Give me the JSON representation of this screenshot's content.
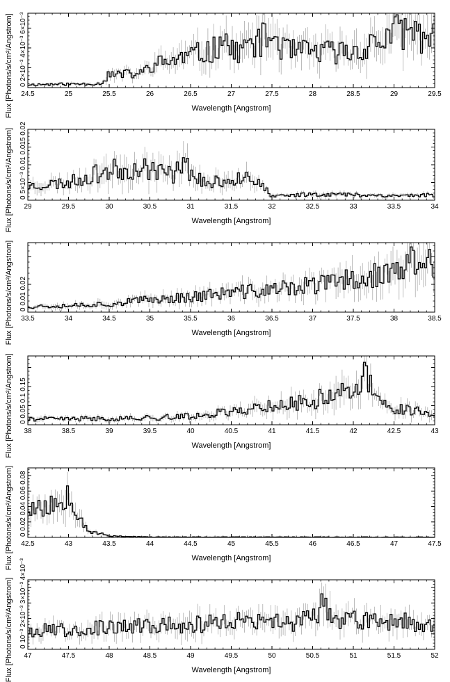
{
  "chart_data": [
    {
      "type": "line",
      "xlabel": "Wavelength [Angstrom]",
      "ylabel": "Flux [Photons/s/cm²/Angstrom]",
      "xlim": [
        24.5,
        29.5
      ],
      "ylim": [
        0,
        0.0075
      ],
      "xticks": [
        24.5,
        25,
        25.5,
        26,
        26.5,
        27,
        27.5,
        28,
        28.5,
        29,
        29.5
      ],
      "ytick_values": [
        0,
        0.002,
        0.004,
        0.006
      ],
      "yticks_text": "0  2×10⁻³ 4×10⁻³ 6×10⁻³",
      "seed": 11,
      "points": [
        [
          24.5,
          0.0003
        ],
        [
          25.4,
          0.0004
        ],
        [
          25.5,
          0.0013
        ],
        [
          25.9,
          0.0014
        ],
        [
          26.0,
          0.0022
        ],
        [
          26.8,
          0.0038
        ],
        [
          26.9,
          0.0056
        ],
        [
          27.0,
          0.0035
        ],
        [
          27.5,
          0.0052
        ],
        [
          27.7,
          0.0036
        ],
        [
          28.5,
          0.0036
        ],
        [
          28.8,
          0.0046
        ],
        [
          29.1,
          0.0058
        ],
        [
          29.5,
          0.005
        ]
      ]
    },
    {
      "type": "line",
      "xlabel": "Wavelength [Angstrom]",
      "ylabel": "Flux [Photons/s/cm²/Angstrom]",
      "xlim": [
        29.0,
        34.0
      ],
      "ylim": [
        0,
        0.02
      ],
      "xticks": [
        29,
        29.5,
        30,
        30.5,
        31,
        31.5,
        32,
        32.5,
        33,
        33.5,
        34
      ],
      "ytick_values": [
        0,
        0.005,
        0.01,
        0.015,
        0.02
      ],
      "yticks_text": "0  5×10⁻³ 0.01 0.015 0.02",
      "seed": 23,
      "points": [
        [
          29.0,
          0.004
        ],
        [
          29.5,
          0.005
        ],
        [
          30.0,
          0.0085
        ],
        [
          30.5,
          0.009
        ],
        [
          30.8,
          0.007
        ],
        [
          30.85,
          0.0125
        ],
        [
          31.0,
          0.008
        ],
        [
          31.2,
          0.0045
        ],
        [
          31.5,
          0.006
        ],
        [
          31.7,
          0.0075
        ],
        [
          31.9,
          0.0035
        ],
        [
          32.0,
          0.001
        ],
        [
          32.5,
          0.0018
        ],
        [
          33.5,
          0.0013
        ],
        [
          34.0,
          0.0015
        ]
      ]
    },
    {
      "type": "line",
      "xlabel": "Wavelength [Angstrom]",
      "ylabel": "Flux [Photons/s/cm²/Angstrom]",
      "xlim": [
        33.5,
        38.5
      ],
      "ylim": [
        0,
        0.025
      ],
      "xticks": [
        33.5,
        34,
        34.5,
        35,
        35.5,
        36,
        36.5,
        37,
        37.5,
        38,
        38.5
      ],
      "ytick_values": [
        0,
        0.01,
        0.02
      ],
      "yticks_text": "0 0.01 0.02",
      "seed": 37,
      "points": [
        [
          33.5,
          0.002
        ],
        [
          34.5,
          0.003
        ],
        [
          35.0,
          0.0045
        ],
        [
          35.5,
          0.0055
        ],
        [
          36.0,
          0.007
        ],
        [
          36.5,
          0.008
        ],
        [
          37.0,
          0.0095
        ],
        [
          37.5,
          0.012
        ],
        [
          38.0,
          0.014
        ],
        [
          38.3,
          0.019
        ],
        [
          38.5,
          0.016
        ]
      ]
    },
    {
      "type": "line",
      "xlabel": "Wavelength [Angstrom]",
      "ylabel": "Flux [Photons/s/cm²/Angstrom]",
      "xlim": [
        38.0,
        43.0
      ],
      "ylim": [
        0,
        0.18
      ],
      "xticks": [
        38,
        38.5,
        39,
        39.5,
        40,
        40.5,
        41,
        41.5,
        42,
        42.5,
        43
      ],
      "ytick_values": [
        0,
        0.05,
        0.1,
        0.15
      ],
      "yticks_text": "0 0.05 0.1 0.15",
      "seed": 41,
      "points": [
        [
          38.0,
          0.015
        ],
        [
          39.0,
          0.016
        ],
        [
          39.5,
          0.018
        ],
        [
          40.0,
          0.022
        ],
        [
          40.5,
          0.035
        ],
        [
          41.0,
          0.05
        ],
        [
          41.5,
          0.06
        ],
        [
          41.8,
          0.09
        ],
        [
          42.0,
          0.075
        ],
        [
          42.15,
          0.13
        ],
        [
          42.3,
          0.06
        ],
        [
          42.5,
          0.045
        ],
        [
          43.0,
          0.03
        ]
      ]
    },
    {
      "type": "line",
      "xlabel": "Wavelength [Angstrom]",
      "ylabel": "Flux [Photons/s/cm²/Angstrom]",
      "xlim": [
        42.5,
        47.5
      ],
      "ylim": [
        0,
        0.09
      ],
      "xticks": [
        42.5,
        43,
        43.5,
        44,
        44.5,
        45,
        45.5,
        46,
        46.5,
        47,
        47.5
      ],
      "ytick_values": [
        0,
        0.02,
        0.04,
        0.06,
        0.08
      ],
      "yticks_text": "0 0.02 0.04 0.06 0.08",
      "seed": 53,
      "points": [
        [
          42.5,
          0.04
        ],
        [
          42.7,
          0.038
        ],
        [
          42.9,
          0.045
        ],
        [
          43.0,
          0.065
        ],
        [
          43.1,
          0.035
        ],
        [
          43.25,
          0.008
        ],
        [
          43.5,
          0.002
        ],
        [
          44.0,
          0.0005
        ],
        [
          47.5,
          0.0004
        ]
      ]
    },
    {
      "type": "line",
      "xlabel": "Wavelength [Angstrom]",
      "ylabel": "Flux [Photons/s/cm²/Angstrom]",
      "xlim": [
        47.0,
        52.0
      ],
      "ylim": [
        0,
        0.0045
      ],
      "xticks": [
        47,
        47.5,
        48,
        48.5,
        49,
        49.5,
        50,
        50.5,
        51,
        51.5,
        52
      ],
      "ytick_values": [
        0,
        0.001,
        0.002,
        0.003,
        0.004
      ],
      "yticks_text": "0  10⁻³ 2×10⁻³ 3×10⁻³ 4×10⁻³",
      "seed": 67,
      "points": [
        [
          47.0,
          0.0012
        ],
        [
          48.0,
          0.0014
        ],
        [
          49.0,
          0.0016
        ],
        [
          49.5,
          0.0018
        ],
        [
          50.0,
          0.0017
        ],
        [
          50.5,
          0.0019
        ],
        [
          50.65,
          0.0032
        ],
        [
          50.8,
          0.0018
        ],
        [
          51.5,
          0.0019
        ],
        [
          52.0,
          0.0015
        ]
      ]
    }
  ]
}
